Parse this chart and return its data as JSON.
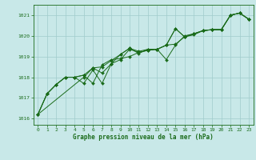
{
  "title": "Graphe pression niveau de la mer (hPa)",
  "background_color": "#c8e8e8",
  "plot_bg_color": "#c8e8e8",
  "grid_color": "#a0cccc",
  "line_color": "#1a6b1a",
  "xlim": [
    -0.5,
    23.5
  ],
  "ylim": [
    1015.7,
    1021.5
  ],
  "yticks": [
    1016,
    1017,
    1018,
    1019,
    1020,
    1021
  ],
  "xticks": [
    0,
    1,
    2,
    3,
    4,
    5,
    6,
    7,
    8,
    9,
    10,
    11,
    12,
    13,
    14,
    15,
    16,
    17,
    18,
    19,
    20,
    21,
    22,
    23
  ],
  "series": [
    {
      "x": [
        0,
        1,
        2,
        3,
        4,
        5,
        6,
        7,
        8,
        9,
        10,
        11,
        12,
        13,
        14,
        15,
        16,
        17,
        18,
        19,
        20,
        21,
        22,
        23
      ],
      "y": [
        1016.2,
        1017.2,
        1017.65,
        1018.0,
        1018.0,
        1017.7,
        1018.35,
        1017.7,
        1018.65,
        1018.85,
        1019.35,
        1019.2,
        1019.3,
        1019.35,
        1019.55,
        1020.35,
        1019.95,
        1020.1,
        1020.25,
        1020.3,
        1020.3,
        1021.0,
        1021.1,
        1020.8
      ]
    },
    {
      "x": [
        0,
        1,
        2,
        3,
        4,
        5,
        6,
        7,
        8,
        9,
        10,
        11,
        12,
        13,
        14,
        15,
        16,
        17,
        18,
        19,
        20,
        21,
        22,
        23
      ],
      "y": [
        1016.2,
        1017.2,
        1017.65,
        1018.0,
        1018.0,
        1018.1,
        1017.7,
        1018.6,
        1018.85,
        1018.9,
        1019.0,
        1019.2,
        1019.3,
        1019.35,
        1018.85,
        1019.55,
        1020.0,
        1020.1,
        1020.25,
        1020.3,
        1020.3,
        1021.0,
        1021.1,
        1020.8
      ]
    },
    {
      "x": [
        0,
        1,
        2,
        3,
        4,
        5,
        6,
        7,
        8,
        9,
        10,
        11,
        12,
        13,
        14,
        15,
        16,
        17,
        18,
        19,
        20,
        21,
        22,
        23
      ],
      "y": [
        1016.2,
        1017.2,
        1017.65,
        1018.0,
        1018.0,
        1018.1,
        1018.45,
        1018.5,
        1018.8,
        1019.1,
        1019.4,
        1019.25,
        1019.35,
        1019.35,
        1019.55,
        1019.6,
        1019.95,
        1020.05,
        1020.25,
        1020.3,
        1020.3,
        1021.0,
        1021.1,
        1020.8
      ]
    },
    {
      "x": [
        0,
        5,
        6,
        7,
        8,
        9,
        10,
        11,
        12,
        13,
        14,
        15,
        16,
        17,
        18,
        19,
        20,
        21,
        22,
        23
      ],
      "y": [
        1016.2,
        1018.0,
        1018.45,
        1018.2,
        1018.65,
        1019.1,
        1019.4,
        1019.15,
        1019.35,
        1019.35,
        1019.55,
        1020.35,
        1019.95,
        1020.1,
        1020.25,
        1020.3,
        1020.3,
        1021.0,
        1021.1,
        1020.8
      ]
    }
  ]
}
